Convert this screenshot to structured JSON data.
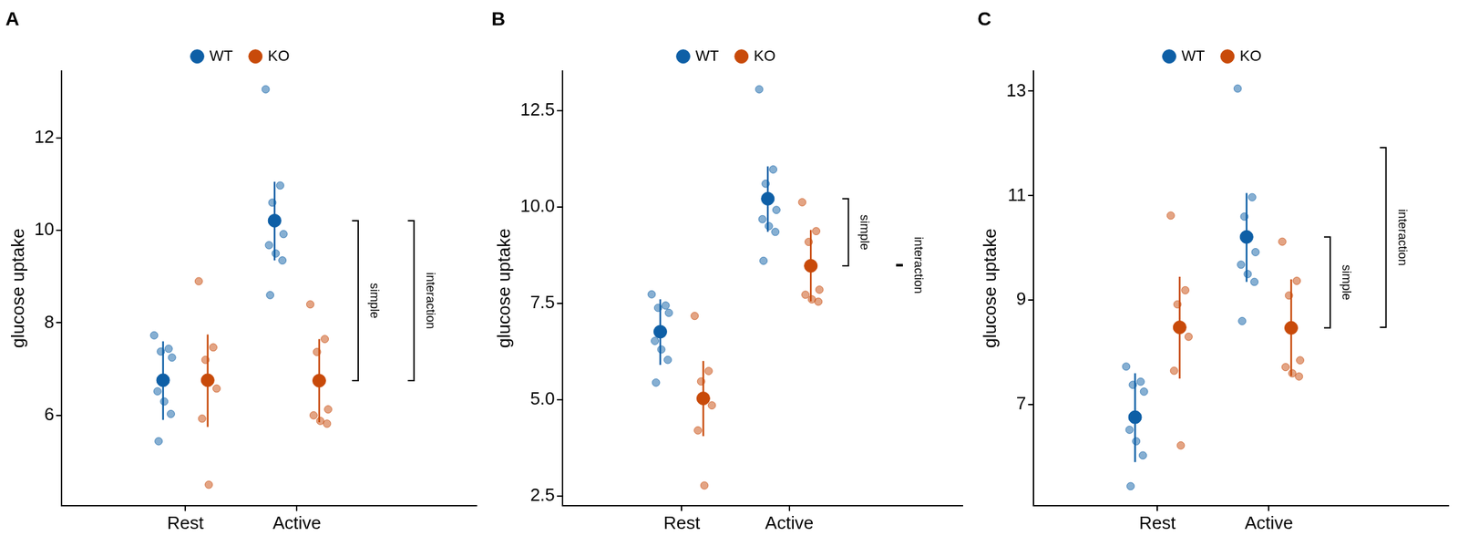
{
  "chart_data": [
    {
      "type": "scatter",
      "title": "A",
      "categories": [
        "Rest",
        "Active"
      ],
      "y_label": "glucose uptake",
      "ylim": [
        4.05,
        13.45
      ],
      "yticks": [
        6,
        8,
        10,
        12
      ],
      "legend": "top",
      "series": [
        {
          "name": "WT",
          "color": "#0e5fa6",
          "values": [
            6.76,
            10.21
          ],
          "points": [
            [
              7.73,
              7.44,
              7.38,
              7.25,
              6.52,
              6.3,
              6.03,
              5.44
            ],
            [
              13.05,
              10.97,
              10.6,
              9.92,
              9.68,
              9.5,
              9.35,
              8.6
            ]
          ],
          "error_low": [
            5.9,
            9.35
          ],
          "error_high": [
            7.6,
            11.05
          ]
        },
        {
          "name": "KO",
          "color": "#c84a0a",
          "values": [
            6.76,
            6.75
          ],
          "points": [
            [
              8.9,
              7.47,
              7.2,
              6.58,
              5.93,
              4.5
            ],
            [
              8.4,
              7.65,
              7.37,
              6.13,
              6.0,
              5.88,
              5.82
            ]
          ],
          "error_low": [
            5.75,
            5.85
          ],
          "error_high": [
            7.75,
            7.65
          ]
        }
      ],
      "annotations": [
        {
          "label": "simple",
          "from": 6.75,
          "to": 10.21
        },
        {
          "label": "interaction",
          "from": 6.75,
          "to": 10.21
        }
      ]
    },
    {
      "type": "scatter",
      "title": "B",
      "categories": [
        "Rest",
        "Active"
      ],
      "y_label": "glucose uptake",
      "ylim": [
        2.25,
        13.53
      ],
      "yticks": [
        2.5,
        {
          "value": 5,
          "label": "5.0"
        },
        7.5,
        {
          "value": 10,
          "label": "10.0"
        },
        12.5
      ],
      "legend": "top",
      "series": [
        {
          "name": "WT",
          "color": "#0e5fa6",
          "values": [
            6.76,
            10.21
          ],
          "points": [
            [
              7.73,
              7.44,
              7.38,
              7.25,
              6.52,
              6.3,
              6.03,
              5.44
            ],
            [
              13.05,
              10.97,
              10.6,
              9.92,
              9.68,
              9.5,
              9.35,
              8.6
            ]
          ],
          "error_low": [
            5.9,
            9.35
          ],
          "error_high": [
            7.6,
            11.05
          ]
        },
        {
          "name": "KO",
          "color": "#c84a0a",
          "values": [
            5.03,
            8.47
          ],
          "points": [
            [
              7.17,
              5.74,
              5.47,
              4.85,
              4.2,
              2.77
            ],
            [
              10.12,
              9.37,
              9.09,
              7.85,
              7.72,
              7.6,
              7.54
            ]
          ],
          "error_low": [
            4.05,
            7.55
          ],
          "error_high": [
            6.0,
            9.4
          ]
        }
      ],
      "annotations": [
        {
          "label": "simple",
          "from": 8.47,
          "to": 10.21
        },
        {
          "label": "interaction",
          "from": 8.47,
          "to": 8.5
        }
      ]
    },
    {
      "type": "scatter",
      "title": "C",
      "categories": [
        "Rest",
        "Active"
      ],
      "y_label": "glucose uptake",
      "ylim": [
        5.07,
        13.39
      ],
      "yticks": [
        7,
        9,
        11,
        13
      ],
      "legend": "top",
      "series": [
        {
          "name": "WT",
          "color": "#0e5fa6",
          "values": [
            6.76,
            10.21
          ],
          "points": [
            [
              7.73,
              7.44,
              7.38,
              7.25,
              6.52,
              6.3,
              6.03,
              5.44
            ],
            [
              13.05,
              10.97,
              10.6,
              9.92,
              9.68,
              9.5,
              9.35,
              8.6
            ]
          ],
          "error_low": [
            5.9,
            9.35
          ],
          "error_high": [
            7.6,
            11.05
          ]
        },
        {
          "name": "KO",
          "color": "#c84a0a",
          "values": [
            8.48,
            8.47
          ],
          "points": [
            [
              10.62,
              9.19,
              8.92,
              8.3,
              7.65,
              6.22
            ],
            [
              10.12,
              9.37,
              9.09,
              7.85,
              7.72,
              7.6,
              7.54
            ]
          ],
          "error_low": [
            7.5,
            7.55
          ],
          "error_high": [
            9.45,
            9.4
          ]
        }
      ],
      "annotations": [
        {
          "label": "simple",
          "from": 8.47,
          "to": 10.21
        },
        {
          "label": "interaction",
          "from": 8.48,
          "to": 11.92
        }
      ]
    }
  ]
}
